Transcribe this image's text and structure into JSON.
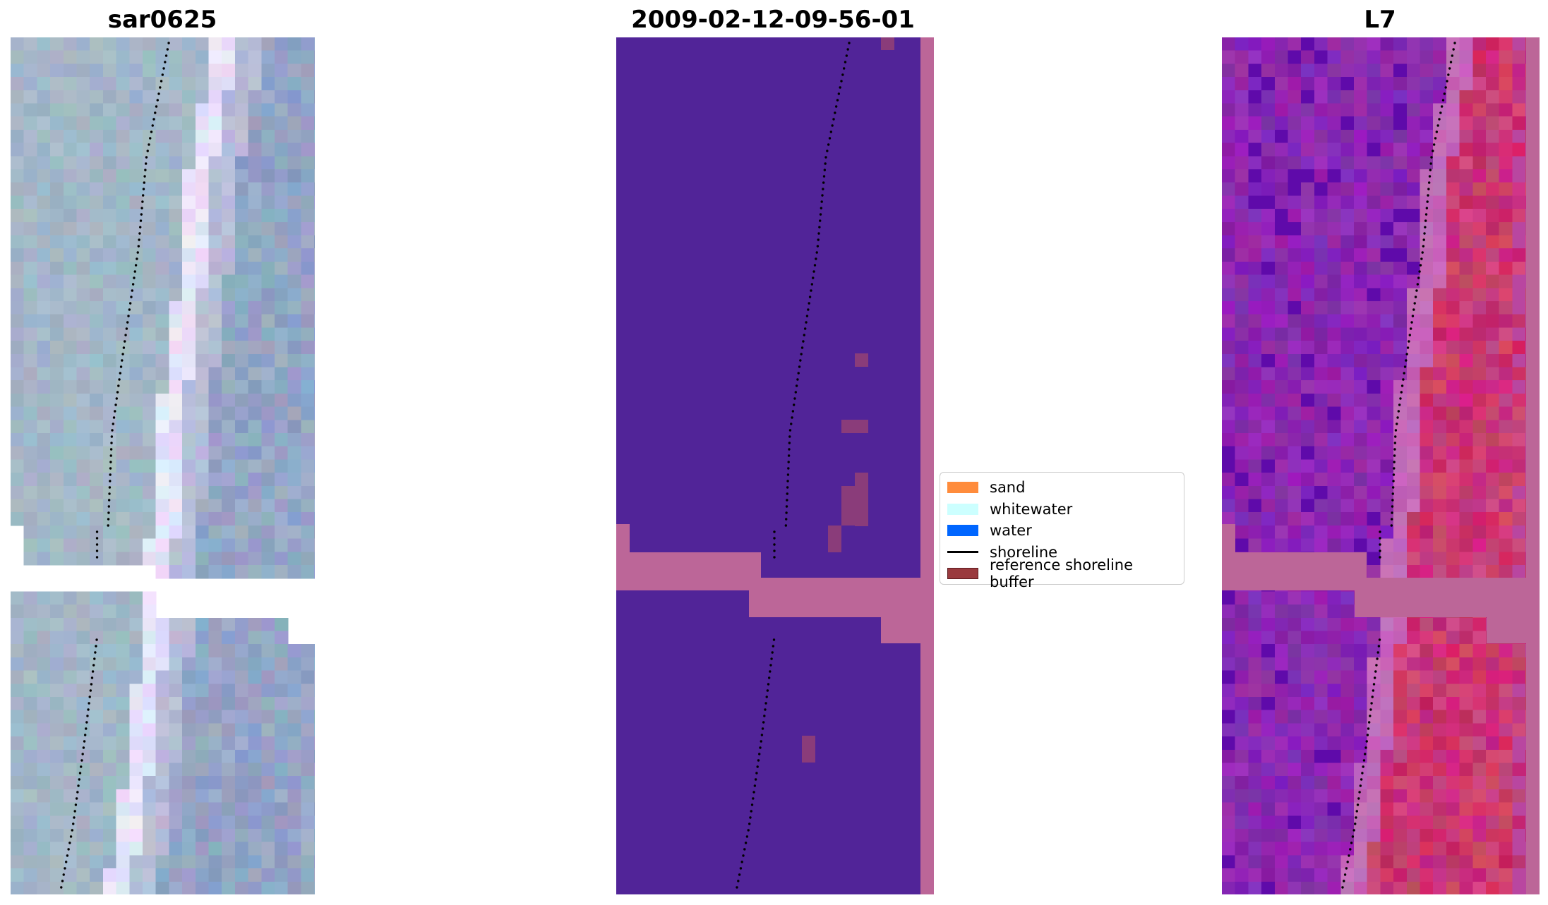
{
  "panels": {
    "left_title": "sar0625",
    "middle_title": "2009-02-12-09-56-01",
    "right_title": "L7"
  },
  "legend": {
    "items": [
      {
        "label": "sand",
        "color": "#ff8c3c"
      },
      {
        "label": "whitewater",
        "color": "#ccffff"
      },
      {
        "label": "water",
        "color": "#0066ff"
      },
      {
        "label": "shoreline",
        "color": "#000000"
      },
      {
        "label": "reference shoreline buffer",
        "color": "#9a3a3e"
      }
    ]
  },
  "colors": {
    "classified_water": "#512498",
    "nodata_mask": "#bc6698",
    "noise_pixels": "#8a3c7a",
    "shoreline_points": "#000000"
  },
  "icons": {
    "shoreline_marker": "dotted-line"
  }
}
